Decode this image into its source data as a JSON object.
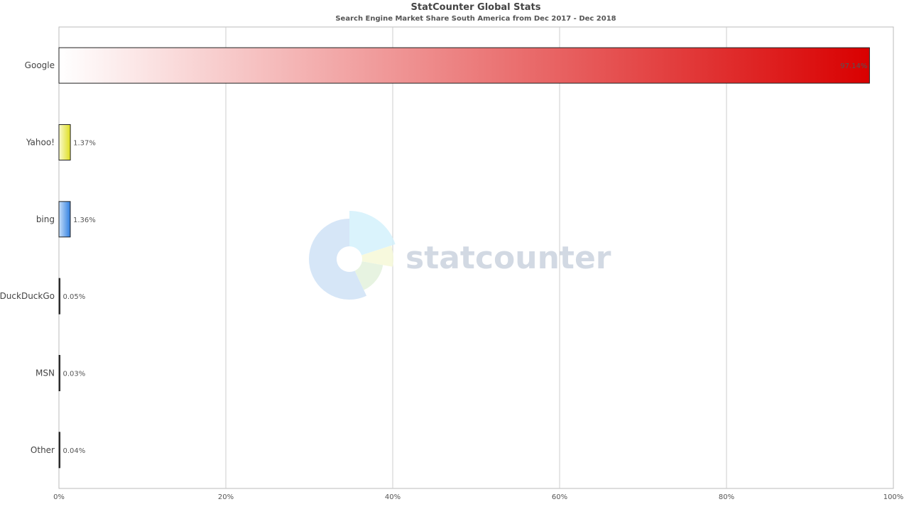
{
  "chart_data": {
    "type": "bar",
    "orientation": "horizontal",
    "title": "StatCounter Global Stats",
    "subtitle": "Search Engine Market Share South America from Dec 2017 - Dec 2018",
    "categories": [
      "Google",
      "Yahoo!",
      "bing",
      "DuckDuckGo",
      "MSN",
      "Other"
    ],
    "values": [
      97.14,
      1.37,
      1.36,
      0.05,
      0.03,
      0.04
    ],
    "value_labels": [
      "97.14%",
      "1.37%",
      "1.36%",
      "0.05%",
      "0.03%",
      "0.04%"
    ],
    "xlim": [
      0,
      100
    ],
    "x_ticks": [
      0,
      20,
      40,
      60,
      80,
      100
    ],
    "x_tick_labels": [
      "0%",
      "20%",
      "40%",
      "60%",
      "80%",
      "100%"
    ],
    "grid": true,
    "colors": {
      "Google": "#d90000",
      "Yahoo!": "#e0e020",
      "bing": "#3a86e0",
      "DuckDuckGo": "#333333",
      "MSN": "#333333",
      "Other": "#333333"
    },
    "watermark": "statcounter"
  }
}
